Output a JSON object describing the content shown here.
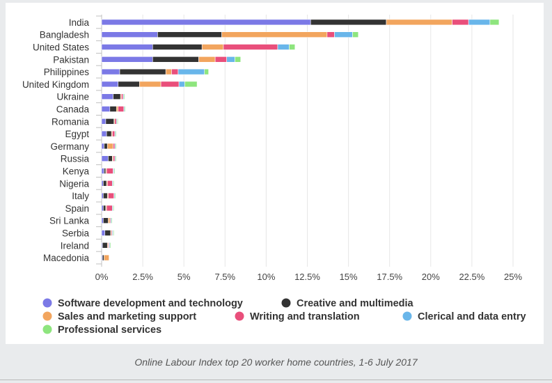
{
  "chart_data": {
    "type": "bar",
    "orientation": "horizontal",
    "stacked": true,
    "categories": [
      "India",
      "Bangladesh",
      "United States",
      "Pakistan",
      "Philippines",
      "United Kingdom",
      "Ukraine",
      "Canada",
      "Romania",
      "Egypt",
      "Germany",
      "Russia",
      "Kenya",
      "Nigeria",
      "Italy",
      "Spain",
      "Sri Lanka",
      "Serbia",
      "Ireland",
      "Macedonia"
    ],
    "series": [
      {
        "name": "Software development and technology",
        "color": "#7b79e6",
        "values": [
          12.7,
          3.4,
          3.1,
          3.1,
          1.1,
          1.0,
          0.7,
          0.5,
          0.25,
          0.3,
          0.15,
          0.4,
          0.15,
          0.1,
          0.1,
          0.1,
          0.1,
          0.2,
          0.05,
          0.05
        ]
      },
      {
        "name": "Creative and multimedia",
        "color": "#333333",
        "values": [
          4.6,
          3.9,
          3.0,
          2.8,
          2.8,
          1.3,
          0.45,
          0.4,
          0.5,
          0.3,
          0.2,
          0.25,
          0.1,
          0.2,
          0.25,
          0.15,
          0.3,
          0.35,
          0.3,
          0.1
        ]
      },
      {
        "name": "Sales and marketing support",
        "color": "#f2a55e",
        "values": [
          4.0,
          6.4,
          1.3,
          1.0,
          0.35,
          1.3,
          0.05,
          0.1,
          0.05,
          0.05,
          0.35,
          0.05,
          0.05,
          0.05,
          0.05,
          0.05,
          0.1,
          0.05,
          0.05,
          0.3
        ]
      },
      {
        "name": "Writing and translation",
        "color": "#e94f7b",
        "values": [
          1.0,
          0.45,
          3.3,
          0.7,
          0.4,
          1.1,
          0.1,
          0.35,
          0.1,
          0.15,
          0.1,
          0.1,
          0.4,
          0.3,
          0.35,
          0.35,
          0.05,
          0.05,
          0.05,
          0.0
        ]
      },
      {
        "name": "Clerical and data entry",
        "color": "#69b6ea",
        "values": [
          1.3,
          1.1,
          0.7,
          0.5,
          1.6,
          0.35,
          0.05,
          0.05,
          0.05,
          0.05,
          0.05,
          0.05,
          0.05,
          0.05,
          0.05,
          0.05,
          0.05,
          0.05,
          0.05,
          0.0
        ]
      },
      {
        "name": "Professional services",
        "color": "#8ee57e",
        "values": [
          0.55,
          0.35,
          0.35,
          0.35,
          0.25,
          0.75,
          0.05,
          0.05,
          0.05,
          0.05,
          0.05,
          0.05,
          0.05,
          0.05,
          0.05,
          0.05,
          0.05,
          0.05,
          0.05,
          0.0
        ]
      }
    ],
    "xlim": [
      0,
      25
    ],
    "xticks": [
      "0%",
      "2.5%",
      "5%",
      "7.5%",
      "10%",
      "12.5%",
      "15%",
      "17.5%",
      "20%",
      "22.5%",
      "25%"
    ],
    "grid": true,
    "legend_position": "bottom"
  },
  "caption": "Online Labour Index top 20 worker home countries, 1-6 July 2017"
}
